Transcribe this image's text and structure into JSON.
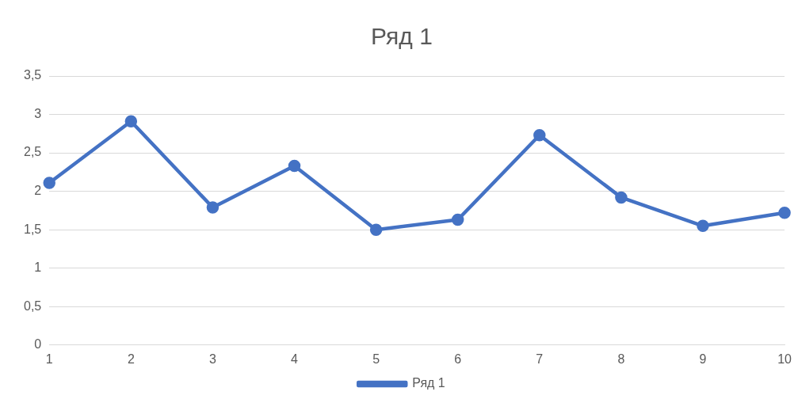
{
  "chart_data": {
    "type": "line",
    "title": "Ряд 1",
    "categories": [
      "1",
      "2",
      "3",
      "4",
      "5",
      "6",
      "7",
      "8",
      "9",
      "10"
    ],
    "series": [
      {
        "name": "Ряд 1",
        "color": "#4472c4",
        "values": [
          2.11,
          2.91,
          1.79,
          2.33,
          1.5,
          1.63,
          2.73,
          1.92,
          1.55,
          1.72
        ]
      }
    ],
    "ylim": [
      0,
      3.5
    ],
    "yticks": [
      0,
      {
        "value": 0.5,
        "label": "0,5"
      },
      1,
      {
        "value": 1.5,
        "label": "1,5"
      },
      2,
      {
        "value": 2.5,
        "label": "2,5"
      },
      3,
      {
        "value": 3.5,
        "label": "3,5"
      }
    ],
    "grid": "y",
    "legend": "bottom",
    "marker": "circle",
    "line_style": "solid"
  }
}
